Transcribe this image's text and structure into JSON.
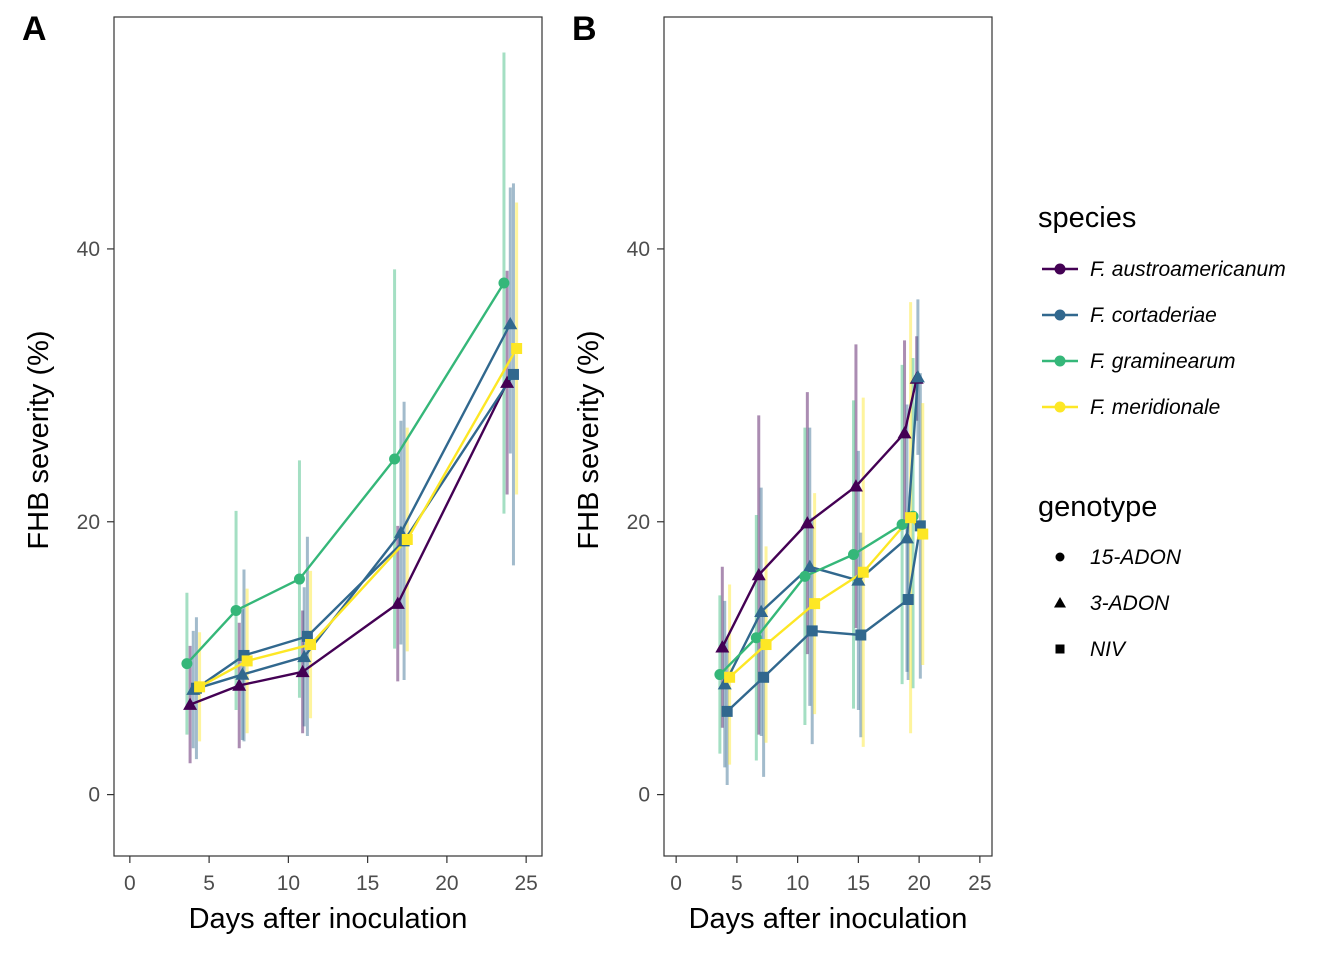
{
  "figure": {
    "legend": {
      "species_title": "species",
      "genotype_title": "genotype"
    }
  },
  "chart_data": [
    {
      "type": "line",
      "panel": "A",
      "xlabel": "Days after inoculation",
      "ylabel": "FHB severity (%)",
      "xlim": [
        -1,
        26
      ],
      "ylim": [
        -4.5,
        57
      ],
      "xticks": [
        0,
        5,
        10,
        15,
        20,
        25
      ],
      "yticks": [
        0,
        20,
        40
      ],
      "grid": false,
      "legend_position": "right",
      "series": [
        {
          "name": "F. austroamericanum",
          "color": "#440154",
          "points": [
            {
              "x": 3.8,
              "y": 6.6,
              "lo": 2.3,
              "hi": 10.9,
              "genotype": "3-ADON"
            },
            {
              "x": 6.9,
              "y": 8.0,
              "lo": 3.4,
              "hi": 12.6,
              "genotype": "3-ADON"
            },
            {
              "x": 10.9,
              "y": 9.0,
              "lo": 4.5,
              "hi": 13.5,
              "genotype": "3-ADON"
            },
            {
              "x": 16.9,
              "y": 14.0,
              "lo": 8.3,
              "hi": 19.7,
              "genotype": "3-ADON"
            },
            {
              "x": 23.8,
              "y": 30.2,
              "lo": 22.0,
              "hi": 38.4,
              "genotype": "3-ADON"
            }
          ]
        },
        {
          "name": "F. cortaderiae",
          "color": "#31688E",
          "points": [
            {
              "x": 4.0,
              "y": 7.7,
              "lo": 3.4,
              "hi": 12.0,
              "genotype": "3-ADON"
            },
            {
              "x": 7.1,
              "y": 8.8,
              "lo": 4.0,
              "hi": 13.6,
              "genotype": "3-ADON"
            },
            {
              "x": 11.0,
              "y": 10.1,
              "lo": 5.0,
              "hi": 15.2,
              "genotype": "3-ADON"
            },
            {
              "x": 17.1,
              "y": 19.2,
              "lo": 11.0,
              "hi": 27.4,
              "genotype": "3-ADON"
            },
            {
              "x": 24.0,
              "y": 34.5,
              "lo": 25.0,
              "hi": 44.5,
              "genotype": "3-ADON"
            },
            {
              "x": 4.2,
              "y": 7.8,
              "lo": 2.6,
              "hi": 13.0,
              "genotype": "NIV"
            },
            {
              "x": 7.2,
              "y": 10.2,
              "lo": 3.9,
              "hi": 16.5,
              "genotype": "NIV"
            },
            {
              "x": 11.2,
              "y": 11.6,
              "lo": 4.3,
              "hi": 18.9,
              "genotype": "NIV"
            },
            {
              "x": 17.3,
              "y": 18.6,
              "lo": 8.4,
              "hi": 28.8,
              "genotype": "NIV"
            },
            {
              "x": 24.2,
              "y": 30.8,
              "lo": 16.8,
              "hi": 44.8,
              "genotype": "NIV"
            }
          ]
        },
        {
          "name": "F. graminearum",
          "color": "#35B779",
          "points": [
            {
              "x": 3.6,
              "y": 9.6,
              "lo": 4.4,
              "hi": 14.8,
              "genotype": "15-ADON"
            },
            {
              "x": 6.7,
              "y": 13.5,
              "lo": 6.2,
              "hi": 20.8,
              "genotype": "15-ADON"
            },
            {
              "x": 10.7,
              "y": 15.8,
              "lo": 7.1,
              "hi": 24.5,
              "genotype": "15-ADON"
            },
            {
              "x": 16.7,
              "y": 24.6,
              "lo": 10.7,
              "hi": 38.5,
              "genotype": "15-ADON"
            },
            {
              "x": 23.6,
              "y": 37.5,
              "lo": 20.6,
              "hi": 54.4,
              "genotype": "15-ADON"
            }
          ]
        },
        {
          "name": "F. meridionale",
          "color": "#FDE725",
          "points": [
            {
              "x": 4.4,
              "y": 7.9,
              "lo": 3.9,
              "hi": 11.9,
              "genotype": "NIV"
            },
            {
              "x": 7.4,
              "y": 9.8,
              "lo": 4.5,
              "hi": 15.1,
              "genotype": "NIV"
            },
            {
              "x": 11.4,
              "y": 11.0,
              "lo": 5.6,
              "hi": 16.4,
              "genotype": "NIV"
            },
            {
              "x": 17.5,
              "y": 18.7,
              "lo": 10.5,
              "hi": 26.9,
              "genotype": "NIV"
            },
            {
              "x": 24.4,
              "y": 32.7,
              "lo": 22.0,
              "hi": 43.4,
              "genotype": "NIV"
            }
          ]
        }
      ]
    },
    {
      "type": "line",
      "panel": "B",
      "xlabel": "Days after inoculation",
      "ylabel": "FHB severity (%)",
      "xlim": [
        -1,
        26
      ],
      "ylim": [
        -4.5,
        57
      ],
      "xticks": [
        0,
        5,
        10,
        15,
        20,
        25
      ],
      "yticks": [
        0,
        20,
        40
      ],
      "grid": false,
      "legend_position": "right",
      "series": [
        {
          "name": "F. austroamericanum",
          "color": "#440154",
          "points": [
            {
              "x": 3.8,
              "y": 10.8,
              "lo": 4.9,
              "hi": 16.7,
              "genotype": "3-ADON"
            },
            {
              "x": 6.8,
              "y": 16.1,
              "lo": 4.4,
              "hi": 27.8,
              "genotype": "3-ADON"
            },
            {
              "x": 10.8,
              "y": 19.9,
              "lo": 10.3,
              "hi": 29.5,
              "genotype": "3-ADON"
            },
            {
              "x": 14.8,
              "y": 22.6,
              "lo": 12.2,
              "hi": 33.0,
              "genotype": "3-ADON"
            },
            {
              "x": 18.8,
              "y": 26.5,
              "lo": 19.7,
              "hi": 33.3,
              "genotype": "3-ADON"
            },
            {
              "x": 19.8,
              "y": 30.5,
              "lo": 27.4,
              "hi": 33.6,
              "genotype": "3-ADON"
            }
          ]
        },
        {
          "name": "F. cortaderiae",
          "color": "#31688E",
          "points": [
            {
              "x": 4.0,
              "y": 8.1,
              "lo": 2.0,
              "hi": 14.2,
              "genotype": "3-ADON"
            },
            {
              "x": 7.0,
              "y": 13.4,
              "lo": 4.3,
              "hi": 22.5,
              "genotype": "3-ADON"
            },
            {
              "x": 11.0,
              "y": 16.7,
              "lo": 6.5,
              "hi": 26.9,
              "genotype": "3-ADON"
            },
            {
              "x": 15.0,
              "y": 15.7,
              "lo": 6.2,
              "hi": 25.2,
              "genotype": "3-ADON"
            },
            {
              "x": 19.0,
              "y": 18.8,
              "lo": 9.0,
              "hi": 28.6,
              "genotype": "3-ADON"
            },
            {
              "x": 19.9,
              "y": 30.6,
              "lo": 24.9,
              "hi": 36.3,
              "genotype": "3-ADON"
            },
            {
              "x": 4.2,
              "y": 6.1,
              "lo": 0.7,
              "hi": 11.5,
              "genotype": "NIV"
            },
            {
              "x": 7.2,
              "y": 8.6,
              "lo": 1.3,
              "hi": 15.9,
              "genotype": "NIV"
            },
            {
              "x": 11.2,
              "y": 12.0,
              "lo": 3.7,
              "hi": 20.3,
              "genotype": "NIV"
            },
            {
              "x": 15.2,
              "y": 11.7,
              "lo": 4.2,
              "hi": 19.2,
              "genotype": "NIV"
            },
            {
              "x": 19.1,
              "y": 14.3,
              "lo": 8.4,
              "hi": 20.2,
              "genotype": "NIV"
            },
            {
              "x": 20.1,
              "y": 19.7,
              "lo": 8.5,
              "hi": 30.9,
              "genotype": "NIV"
            }
          ]
        },
        {
          "name": "F. graminearum",
          "color": "#35B779",
          "points": [
            {
              "x": 3.6,
              "y": 8.8,
              "lo": 3.0,
              "hi": 14.6,
              "genotype": "15-ADON"
            },
            {
              "x": 6.6,
              "y": 11.5,
              "lo": 2.5,
              "hi": 20.5,
              "genotype": "15-ADON"
            },
            {
              "x": 10.6,
              "y": 16.0,
              "lo": 5.1,
              "hi": 26.9,
              "genotype": "15-ADON"
            },
            {
              "x": 14.6,
              "y": 17.6,
              "lo": 6.3,
              "hi": 28.9,
              "genotype": "15-ADON"
            },
            {
              "x": 18.6,
              "y": 19.8,
              "lo": 8.1,
              "hi": 31.5,
              "genotype": "15-ADON"
            },
            {
              "x": 19.5,
              "y": 20.4,
              "lo": 7.8,
              "hi": 32.0,
              "genotype": "15-ADON"
            }
          ]
        },
        {
          "name": "F. meridionale",
          "color": "#FDE725",
          "points": [
            {
              "x": 4.4,
              "y": 8.6,
              "lo": 2.2,
              "hi": 15.4,
              "genotype": "NIV"
            },
            {
              "x": 7.4,
              "y": 11.0,
              "lo": 3.8,
              "hi": 18.2,
              "genotype": "NIV"
            },
            {
              "x": 11.4,
              "y": 14.0,
              "lo": 5.9,
              "hi": 22.1,
              "genotype": "NIV"
            },
            {
              "x": 15.4,
              "y": 16.3,
              "lo": 3.5,
              "hi": 29.1,
              "genotype": "NIV"
            },
            {
              "x": 19.3,
              "y": 20.3,
              "lo": 4.5,
              "hi": 36.1,
              "genotype": "NIV"
            },
            {
              "x": 20.3,
              "y": 19.1,
              "lo": 9.5,
              "hi": 28.7,
              "genotype": "NIV"
            }
          ]
        }
      ]
    }
  ]
}
